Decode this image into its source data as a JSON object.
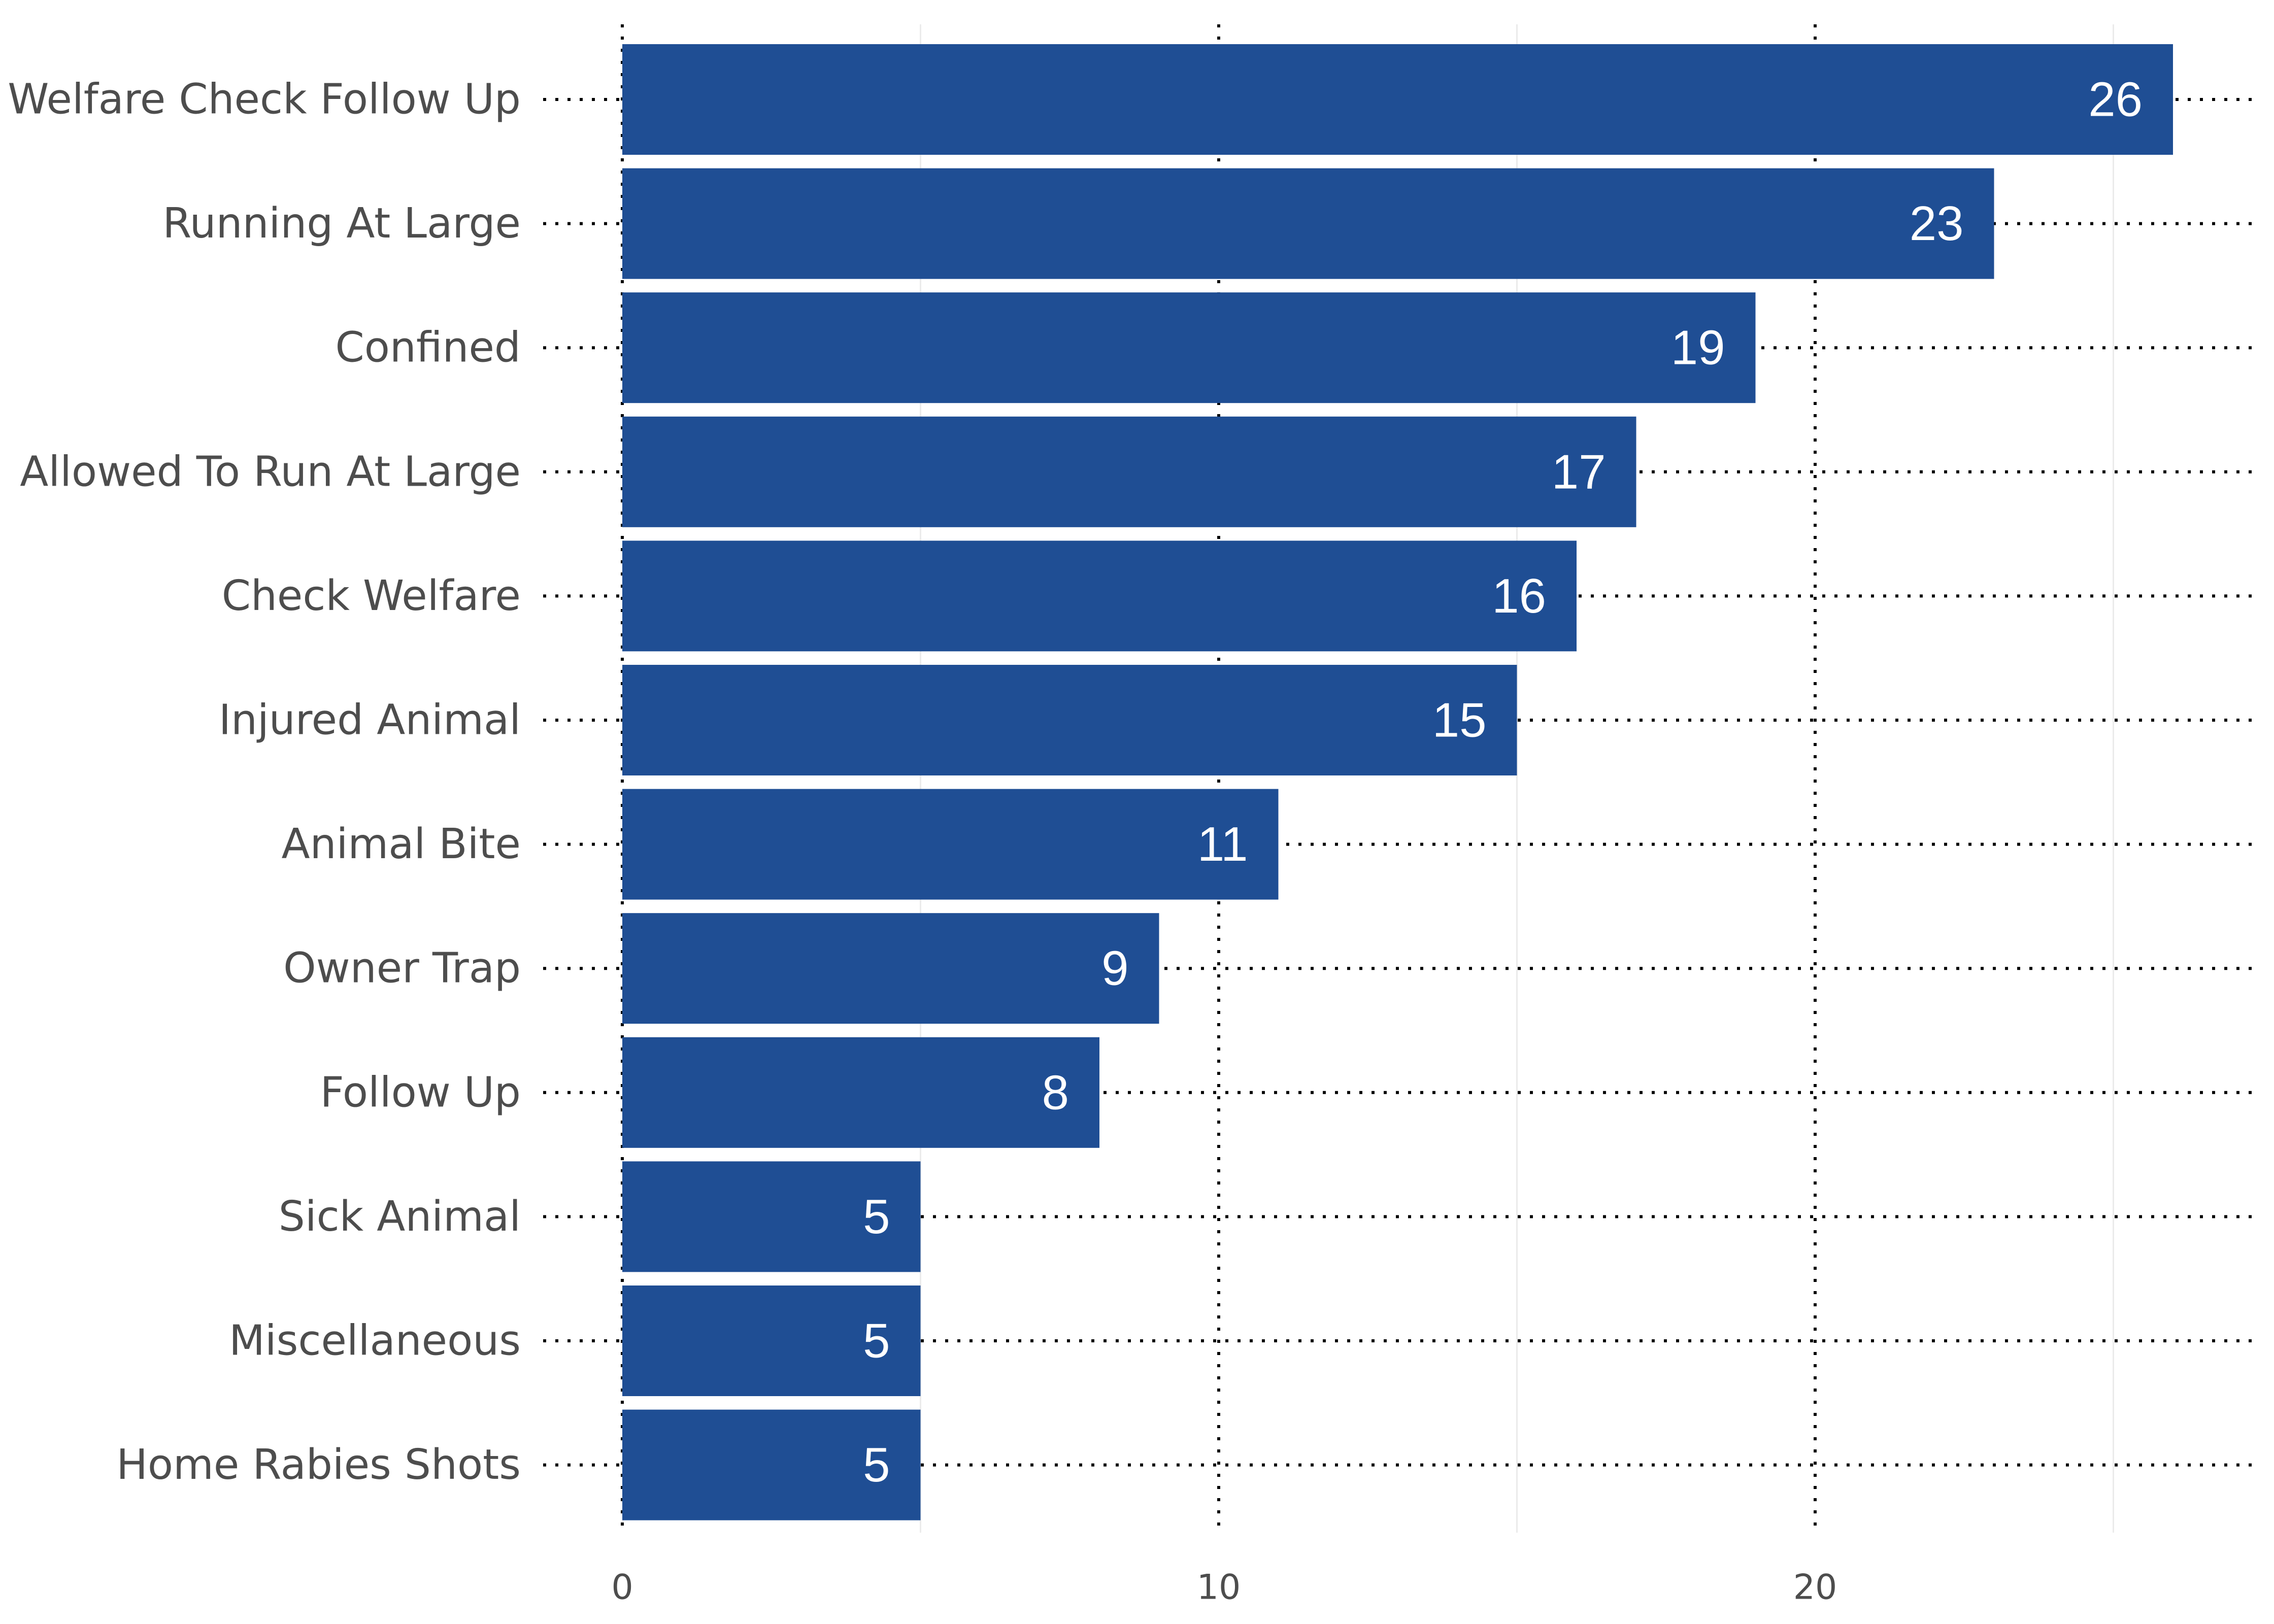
{
  "chart_data": {
    "type": "bar",
    "orientation": "horizontal",
    "title": "",
    "xlabel": "",
    "ylabel": "",
    "categories": [
      "Welfare Check Follow Up",
      "Running At Large",
      "Confined",
      "Allowed To Run At Large",
      "Check Welfare",
      "Injured Animal",
      "Animal Bite",
      "Owner Trap",
      "Follow Up",
      "Sick Animal",
      "Miscellaneous",
      "Home Rabies Shots"
    ],
    "values": [
      26,
      23,
      19,
      17,
      16,
      15,
      11,
      9,
      8,
      5,
      5,
      5
    ],
    "xlim": [
      0,
      27.5
    ],
    "x_ticks": [
      "0",
      "10",
      "20"
    ],
    "x_tick_values": [
      0,
      10,
      20
    ],
    "minor_grid_values": [
      5,
      15,
      25
    ],
    "data_labels": [
      "26",
      "23",
      "19",
      "17",
      "16",
      "15",
      "11",
      "9",
      "8",
      "5",
      "5",
      "5"
    ],
    "bar_color": "#1f4e94",
    "label_color": "#ffffff",
    "grid": "dotted major lines, faint minor lines",
    "legend": "none"
  }
}
